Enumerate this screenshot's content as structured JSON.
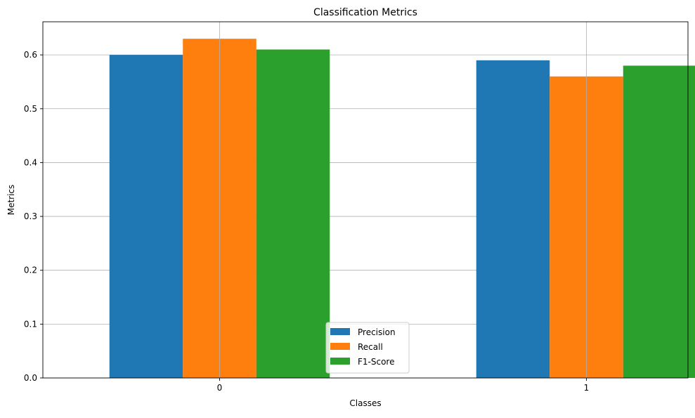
{
  "chart_data": {
    "type": "bar",
    "title": "Classification Metrics",
    "xlabel": "Classes",
    "ylabel": "Metrics",
    "categories": [
      "0",
      "1"
    ],
    "series": [
      {
        "name": "Precision",
        "color": "#1f77b4",
        "values": [
          0.6,
          0.59
        ]
      },
      {
        "name": "Recall",
        "color": "#ff7f0e",
        "values": [
          0.63,
          0.56
        ]
      },
      {
        "name": "F1-Score",
        "color": "#2ca02c",
        "values": [
          0.61,
          0.58
        ]
      }
    ],
    "ylim": [
      0,
      0.6615
    ],
    "yticks": [
      0.0,
      0.1,
      0.2,
      0.3,
      0.4,
      0.5,
      0.6
    ],
    "ytick_labels": [
      "0.0",
      "0.1",
      "0.2",
      "0.3",
      "0.4",
      "0.5",
      "0.6"
    ],
    "grid": true,
    "legend_position": "bottom-center"
  }
}
